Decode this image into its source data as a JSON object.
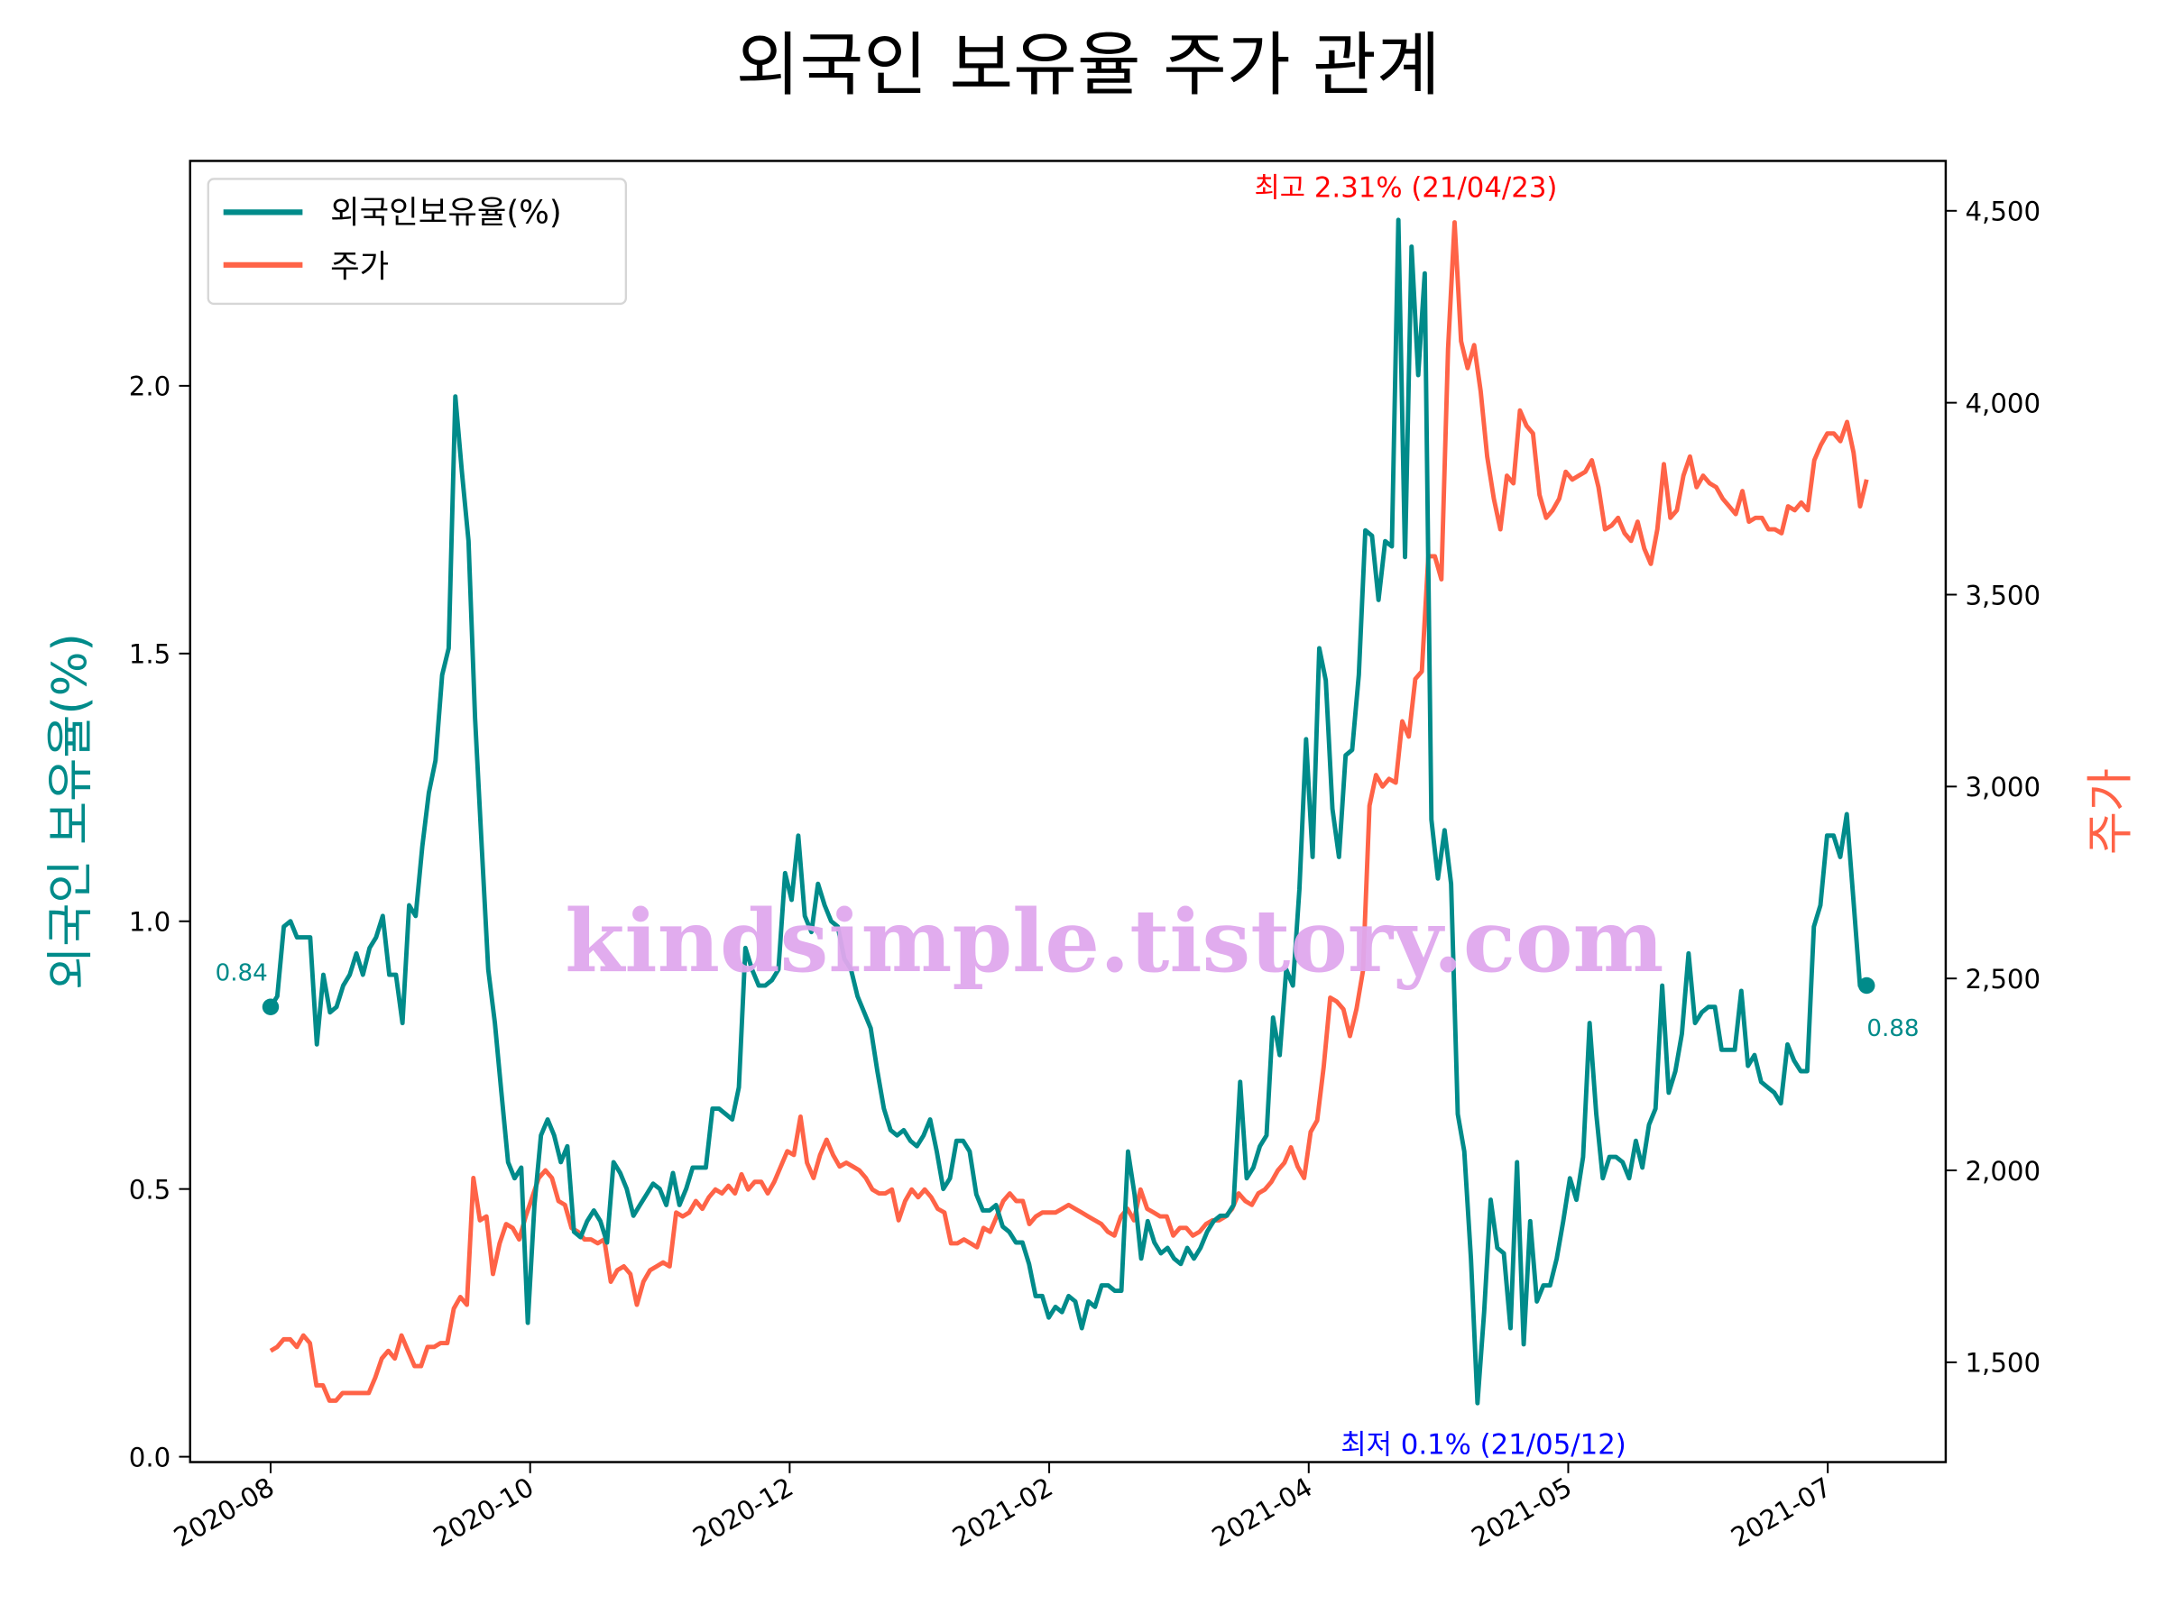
{
  "chart_data": {
    "type": "line",
    "title": "외국인 보유율 주가 관계",
    "ylabel_left": "외국인 보유율(%)",
    "ylabel_right": "주가",
    "ylim_left": [
      -0.01,
      2.42
    ],
    "ylim_right": [
      1240,
      4630
    ],
    "grid": false,
    "legend_position": "top-left",
    "xtick_labels": [
      "2020-08",
      "2020-10",
      "2020-12",
      "2021-02",
      "2021-04",
      "2021-05",
      "2021-07"
    ],
    "yticks_left": [
      "0.0",
      "0.5",
      "1.0",
      "1.5",
      "2.0"
    ],
    "yticks_left_values": [
      0,
      0.5,
      1.0,
      1.5,
      2.0
    ],
    "yticks_right": [
      "1,500",
      "2,000",
      "2,500",
      "3,000",
      "3,500",
      "4,000",
      "4,500"
    ],
    "yticks_right_values": [
      1500,
      2000,
      2500,
      3000,
      3500,
      4000,
      4500
    ],
    "series": [
      {
        "name": "외국인보유율(%)",
        "axis": "left",
        "color": "#008B8A",
        "values": [
          0.84,
          0.86,
          0.99,
          1.0,
          0.97,
          0.97,
          0.97,
          0.77,
          0.9,
          0.83,
          0.84,
          0.88,
          0.9,
          0.94,
          0.9,
          0.95,
          0.97,
          1.01,
          0.9,
          0.9,
          0.81,
          1.03,
          1.01,
          1.14,
          1.24,
          1.3,
          1.46,
          1.51,
          1.98,
          1.84,
          1.71,
          1.38,
          1.14,
          0.91,
          0.81,
          0.68,
          0.55,
          0.52,
          0.54,
          0.25,
          0.47,
          0.6,
          0.63,
          0.6,
          0.55,
          0.58,
          0.42,
          0.41,
          0.44,
          0.46,
          0.44,
          0.4,
          0.55,
          0.53,
          0.5,
          0.45,
          0.47,
          0.49,
          0.51,
          0.5,
          0.47,
          0.53,
          0.47,
          0.5,
          0.54,
          0.54,
          0.54,
          0.65,
          0.65,
          0.64,
          0.63,
          0.69,
          0.95,
          0.91,
          0.88,
          0.88,
          0.89,
          0.91,
          1.09,
          1.04,
          1.16,
          1.01,
          0.98,
          1.07,
          1.03,
          1.0,
          0.99,
          0.93,
          0.91,
          0.86,
          0.83,
          0.8,
          0.72,
          0.65,
          0.61,
          0.6,
          0.61,
          0.59,
          0.58,
          0.6,
          0.63,
          0.57,
          0.5,
          0.52,
          0.59,
          0.59,
          0.57,
          0.49,
          0.46,
          0.46,
          0.47,
          0.43,
          0.42,
          0.4,
          0.4,
          0.36,
          0.3,
          0.3,
          0.26,
          0.28,
          0.27,
          0.3,
          0.29,
          0.24,
          0.29,
          0.28,
          0.32,
          0.32,
          0.31,
          0.31,
          0.57,
          0.49,
          0.37,
          0.44,
          0.4,
          0.38,
          0.39,
          0.37,
          0.36,
          0.39,
          0.37,
          0.39,
          0.42,
          0.44,
          0.45,
          0.45,
          0.47,
          0.7,
          0.52,
          0.54,
          0.58,
          0.6,
          0.82,
          0.75,
          0.91,
          0.88,
          1.06,
          1.34,
          1.12,
          1.51,
          1.45,
          1.21,
          1.12,
          1.31,
          1.32,
          1.46,
          1.73,
          1.72,
          1.6,
          1.71,
          1.7,
          2.31,
          1.68,
          2.26,
          2.02,
          2.21,
          1.19,
          1.08,
          1.17,
          1.07,
          0.64,
          0.57,
          0.37,
          0.1,
          0.27,
          0.48,
          0.39,
          0.38,
          0.24,
          0.55,
          0.21,
          0.44,
          0.29,
          0.32,
          0.32,
          0.37,
          0.44,
          0.52,
          0.48,
          0.56,
          0.81,
          0.64,
          0.52,
          0.56,
          0.56,
          0.55,
          0.52,
          0.59,
          0.54,
          0.62,
          0.65,
          0.88,
          0.68,
          0.72,
          0.79,
          0.94,
          0.81,
          0.83,
          0.84,
          0.84,
          0.76,
          0.76,
          0.76,
          0.87,
          0.73,
          0.75,
          0.7,
          0.69,
          0.68,
          0.66,
          0.77,
          0.74,
          0.72,
          0.72,
          0.99,
          1.03,
          1.16,
          1.16,
          1.12,
          1.2,
          1.04,
          0.88,
          0.88
        ]
      },
      {
        "name": "주가",
        "axis": "right",
        "color": "#FF6347",
        "values": [
          1530,
          1540,
          1560,
          1560,
          1540,
          1570,
          1550,
          1440,
          1440,
          1400,
          1400,
          1420,
          1420,
          1420,
          1420,
          1420,
          1460,
          1510,
          1530,
          1510,
          1570,
          1530,
          1490,
          1490,
          1540,
          1540,
          1550,
          1550,
          1640,
          1670,
          1650,
          1980,
          1870,
          1880,
          1730,
          1810,
          1860,
          1850,
          1820,
          1880,
          1930,
          1980,
          2000,
          1980,
          1920,
          1910,
          1850,
          1840,
          1820,
          1820,
          1810,
          1820,
          1710,
          1740,
          1750,
          1730,
          1650,
          1710,
          1740,
          1750,
          1760,
          1750,
          1890,
          1880,
          1890,
          1920,
          1900,
          1930,
          1950,
          1940,
          1960,
          1940,
          1990,
          1950,
          1970,
          1970,
          1940,
          1970,
          2010,
          2050,
          2040,
          2140,
          2020,
          1980,
          2040,
          2080,
          2040,
          2010,
          2020,
          2010,
          2000,
          1980,
          1950,
          1940,
          1940,
          1950,
          1870,
          1920,
          1950,
          1930,
          1950,
          1930,
          1900,
          1890,
          1810,
          1810,
          1820,
          1810,
          1800,
          1850,
          1840,
          1880,
          1920,
          1940,
          1920,
          1920,
          1860,
          1880,
          1890,
          1890,
          1890,
          1900,
          1910,
          1900,
          1890,
          1880,
          1870,
          1860,
          1840,
          1830,
          1880,
          1900,
          1870,
          1950,
          1900,
          1890,
          1880,
          1880,
          1830,
          1850,
          1850,
          1830,
          1840,
          1860,
          1870,
          1870,
          1880,
          1900,
          1940,
          1920,
          1910,
          1940,
          1950,
          1970,
          2000,
          2020,
          2060,
          2010,
          1980,
          2100,
          2130,
          2270,
          2450,
          2440,
          2420,
          2350,
          2420,
          2520,
          2950,
          3030,
          3000,
          3020,
          3010,
          3170,
          3130,
          3280,
          3300,
          3600,
          3600,
          3540,
          4140,
          4470,
          4160,
          4090,
          4150,
          4030,
          3860,
          3750,
          3670,
          3810,
          3790,
          3980,
          3940,
          3920,
          3760,
          3700,
          3720,
          3750,
          3820,
          3800,
          3810,
          3820,
          3850,
          3780,
          3670,
          3680,
          3700,
          3660,
          3640,
          3690,
          3620,
          3580,
          3670,
          3840,
          3700,
          3720,
          3810,
          3860,
          3780,
          3810,
          3790,
          3780,
          3750,
          3730,
          3710,
          3770,
          3690,
          3700,
          3700,
          3670,
          3670,
          3660,
          3730,
          3720,
          3740,
          3720,
          3850,
          3890,
          3920,
          3920,
          3900,
          3950,
          3870,
          3730,
          3800
        ]
      }
    ],
    "annotations": {
      "max_label": "최고 2.31% (21/04/23)",
      "min_label": "최저 0.1% (21/05/12)",
      "start_label": "0.84",
      "end_label": "0.88",
      "max_color": "#FF0000",
      "min_color": "#0000FF"
    },
    "watermark": "kindsimple.tistory.com",
    "watermark_color": "#E0A8EE"
  }
}
